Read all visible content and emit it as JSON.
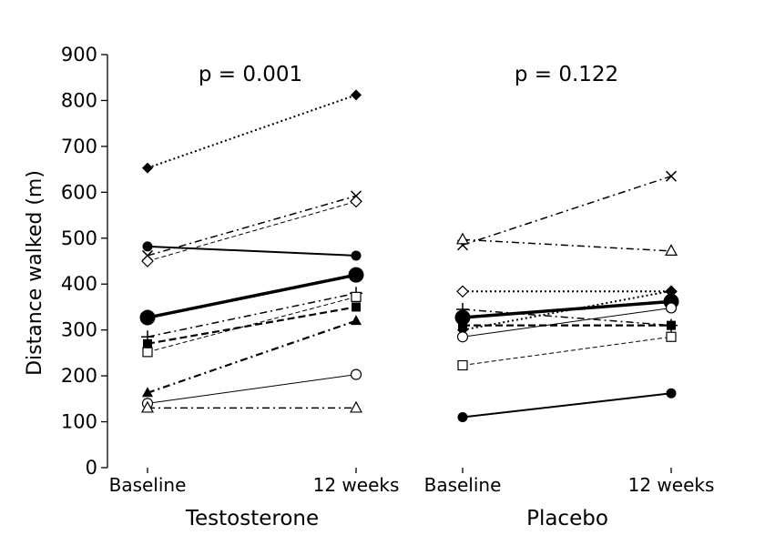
{
  "chart_data": {
    "type": "line",
    "ylabel": "Distance walked (m)",
    "ylim": [
      0,
      900
    ],
    "yticks": [
      "0",
      "100",
      "200",
      "300",
      "400",
      "500",
      "600",
      "700",
      "800",
      "900"
    ],
    "ytick_values": [
      0,
      100,
      200,
      300,
      400,
      500,
      600,
      700,
      800,
      900
    ],
    "x_categories": [
      "Baseline",
      "12 weeks"
    ],
    "grid": false,
    "groups": [
      {
        "name": "Testosterone",
        "pvalue": "p = 0.001",
        "series": [
          {
            "id": "t1",
            "marker": "filled-diamond",
            "line": "dotted",
            "values": [
              653,
              812
            ]
          },
          {
            "id": "t2",
            "marker": "x",
            "line": "dash-dot",
            "values": [
              462,
              592
            ]
          },
          {
            "id": "t3",
            "marker": "open-diamond",
            "line": "dashed-thin",
            "values": [
              450,
              580
            ]
          },
          {
            "id": "t4",
            "marker": "filled-circle",
            "line": "solid",
            "values": [
              482,
              462
            ]
          },
          {
            "id": "mean",
            "marker": "large-filled-circle",
            "line": "solid-thick",
            "values": [
              327,
              420
            ]
          },
          {
            "id": "t6",
            "marker": "plus",
            "line": "dash-dot",
            "values": [
              285,
              380
            ]
          },
          {
            "id": "t7",
            "marker": "open-square",
            "line": "dashed-thin",
            "values": [
              252,
              372
            ]
          },
          {
            "id": "t8",
            "marker": "filled-square",
            "line": "dashed-thick",
            "values": [
              270,
              350
            ]
          },
          {
            "id": "t9",
            "marker": "filled-triangle",
            "line": "dash-dot-thick",
            "values": [
              163,
              320
            ]
          },
          {
            "id": "t10",
            "marker": "open-circle",
            "line": "solid-thin",
            "values": [
              140,
              203
            ]
          },
          {
            "id": "t11",
            "marker": "open-triangle",
            "line": "dash-dot",
            "values": [
              130,
              130
            ]
          }
        ]
      },
      {
        "name": "Placebo",
        "pvalue": "p = 0.122",
        "series": [
          {
            "id": "p1",
            "marker": "x",
            "line": "dash-dot",
            "values": [
              485,
              635
            ]
          },
          {
            "id": "p2",
            "marker": "open-triangle",
            "line": "dash-dot",
            "values": [
              497,
              472
            ]
          },
          {
            "id": "p3",
            "marker": "open-diamond",
            "line": "dotted",
            "values": [
              384,
              384
            ]
          },
          {
            "id": "p4",
            "marker": "filled-diamond",
            "line": "dotted",
            "values": [
              300,
              385
            ]
          },
          {
            "id": "mean",
            "marker": "large-filled-circle",
            "line": "solid-thick",
            "values": [
              327,
              362
            ]
          },
          {
            "id": "p6",
            "marker": "plus",
            "line": "dash-dot",
            "values": [
              345,
              310
            ]
          },
          {
            "id": "p7",
            "marker": "filled-square",
            "line": "dashed-thick",
            "values": [
              310,
              310
            ]
          },
          {
            "id": "p8",
            "marker": "open-circle",
            "line": "solid-thin",
            "values": [
              285,
              348
            ]
          },
          {
            "id": "p9",
            "marker": "open-square",
            "line": "dashed-thin",
            "values": [
              223,
              285
            ]
          },
          {
            "id": "p10",
            "marker": "filled-circle",
            "line": "solid",
            "values": [
              110,
              162
            ]
          }
        ]
      }
    ]
  }
}
